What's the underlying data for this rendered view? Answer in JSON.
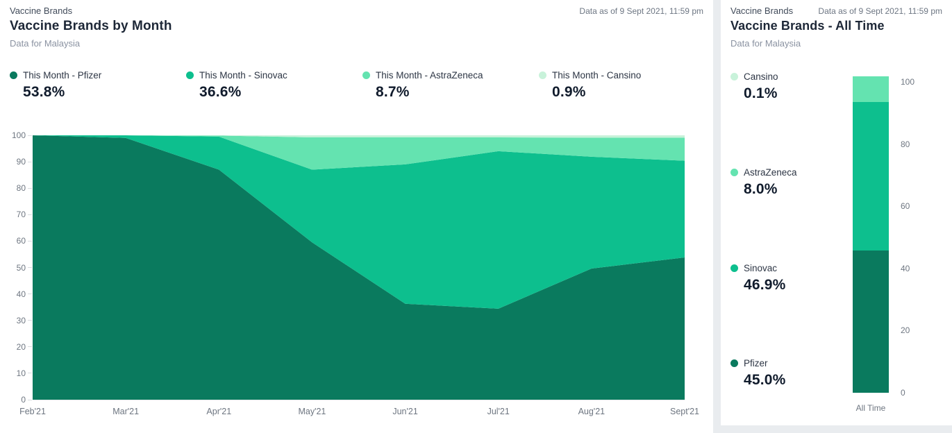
{
  "left_panel": {
    "eyebrow": "Vaccine Brands",
    "timestamp": "Data as of 9 Sept 2021, 11:59 pm",
    "title": "Vaccine Brands by Month",
    "subtitle": "Data for Malaysia",
    "legend": [
      {
        "label": "This Month - Pfizer",
        "value": "53.8%",
        "color": "#0a7a5e"
      },
      {
        "label": "This Month - Sinovac",
        "value": "36.6%",
        "color": "#0dbf8e"
      },
      {
        "label": "This Month - AstraZeneca",
        "value": "8.7%",
        "color": "#64e3b0"
      },
      {
        "label": "This Month - Cansino",
        "value": "0.9%",
        "color": "#c8f2da"
      }
    ]
  },
  "right_panel": {
    "eyebrow": "Vaccine Brands",
    "timestamp": "Data as of 9 Sept 2021, 11:59 pm",
    "title": "Vaccine Brands - All Time",
    "subtitle": "Data for Malaysia",
    "legend": [
      {
        "label": "Cansino",
        "value": "0.1%",
        "color": "#c8f2da"
      },
      {
        "label": "AstraZeneca",
        "value": "8.0%",
        "color": "#64e3b0"
      },
      {
        "label": "Sinovac",
        "value": "46.9%",
        "color": "#0dbf8e"
      },
      {
        "label": "Pfizer",
        "value": "45.0%",
        "color": "#0a7a5e"
      }
    ],
    "bar_x_label": "All Time"
  },
  "chart_data": [
    {
      "type": "area",
      "stacked": true,
      "value_format": "percent",
      "title": "Vaccine Brands by Month",
      "xlabel": "",
      "ylabel": "",
      "categories": [
        "Feb'21",
        "Mar'21",
        "Apr'21",
        "May'21",
        "Jun'21",
        "Jul'21",
        "Aug'21",
        "Sept'21"
      ],
      "series": [
        {
          "name": "This Month - Pfizer",
          "color": "#0a7a5e",
          "values": [
            100,
            99,
            87,
            59.5,
            36.3,
            34.4,
            49.6,
            53.8
          ]
        },
        {
          "name": "This Month - Sinovac",
          "color": "#0dbf8e",
          "values": [
            0,
            1,
            12.5,
            27.5,
            52.7,
            59.6,
            42.3,
            36.6
          ]
        },
        {
          "name": "This Month - AstraZeneca",
          "color": "#64e3b0",
          "values": [
            0,
            0,
            0.4,
            12.2,
            10.2,
            5.2,
            7.2,
            8.7
          ]
        },
        {
          "name": "This Month - Cansino",
          "color": "#c8f2da",
          "values": [
            0,
            0,
            0.1,
            0.8,
            0.8,
            0.8,
            0.9,
            0.9
          ]
        }
      ],
      "ylim": [
        0,
        100
      ],
      "yticks": [
        0,
        10,
        20,
        30,
        40,
        50,
        60,
        70,
        80,
        90,
        100
      ],
      "legend_position": "top",
      "grid": false
    },
    {
      "type": "bar",
      "stacked": true,
      "value_format": "percent",
      "title": "Vaccine Brands - All Time",
      "xlabel": "",
      "ylabel": "",
      "categories": [
        "All Time"
      ],
      "series": [
        {
          "name": "Pfizer",
          "color": "#0a7a5e",
          "values": [
            45.0
          ]
        },
        {
          "name": "Sinovac",
          "color": "#0dbf8e",
          "values": [
            46.9
          ]
        },
        {
          "name": "AstraZeneca",
          "color": "#64e3b0",
          "values": [
            8.0
          ]
        },
        {
          "name": "Cansino",
          "color": "#c8f2da",
          "values": [
            0.1
          ]
        }
      ],
      "ylim": [
        0,
        100
      ],
      "yticks": [
        0,
        20,
        40,
        60,
        80,
        100
      ],
      "legend_position": "left",
      "grid": false
    }
  ]
}
